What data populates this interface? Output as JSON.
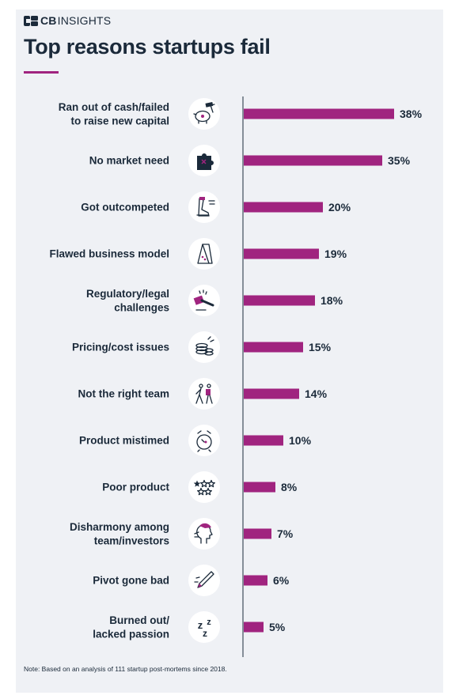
{
  "brand": {
    "name_bold": "CB",
    "name_rest": "INSIGHTS"
  },
  "title": "Top reasons startups fail",
  "note": "Note: Based on an analysis of 111 startup post-mortems since 2018.",
  "colors": {
    "bar": "#a0247f",
    "label": "#1b2a3a",
    "icon_circle": "#ffffff",
    "icon_stroke": "#1b2a3a",
    "accent": "#a0247f"
  },
  "chart_data": {
    "type": "bar",
    "orientation": "horizontal",
    "title": "Top reasons startups fail",
    "value_suffix": "%",
    "xlim": [
      0,
      40
    ],
    "grid": false,
    "categories": [
      "Ran out of cash/failed to raise new capital",
      "No market need",
      "Got outcompeted",
      "Flawed business model",
      "Regulatory/legal challenges",
      "Pricing/cost issues",
      "Not the right team",
      "Product mistimed",
      "Poor product",
      "Disharmony among team/investors",
      "Pivot gone bad",
      "Burned out/ lacked passion"
    ],
    "label_lines": [
      [
        "Ran out of cash/failed",
        "to raise new capital"
      ],
      [
        "No market need"
      ],
      [
        "Got outcompeted"
      ],
      [
        "Flawed business model"
      ],
      [
        "Regulatory/legal",
        "challenges"
      ],
      [
        "Pricing/cost issues"
      ],
      [
        "Not the right team"
      ],
      [
        "Product mistimed"
      ],
      [
        "Poor product"
      ],
      [
        "Disharmony among",
        "team/investors"
      ],
      [
        "Pivot gone bad"
      ],
      [
        "Burned out/",
        "lacked passion"
      ]
    ],
    "values": [
      38,
      35,
      20,
      19,
      18,
      15,
      14,
      10,
      8,
      7,
      6,
      5
    ],
    "value_labels": [
      "38%",
      "35%",
      "20%",
      "19%",
      "18%",
      "15%",
      "14%",
      "10%",
      "8%",
      "7%",
      "6%",
      "5%"
    ],
    "icons": [
      "piggy-bank-hammer-icon",
      "puzzle-piece-icon",
      "running-shoe-icon",
      "card-house-icon",
      "gavel-icon",
      "coin-stack-icon",
      "walking-people-icon",
      "alarm-clock-icon",
      "star-rating-icon",
      "frustrated-person-icon",
      "pencil-icon",
      "sleep-zzz-icon"
    ]
  }
}
